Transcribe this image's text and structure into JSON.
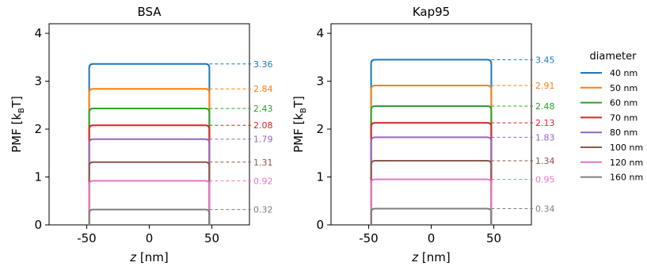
{
  "chart_data": [
    {
      "type": "line",
      "title": "BSA",
      "xlabel": "z [nm]",
      "xlabel_italic": "z",
      "xlabel_rest": " [nm]",
      "ylabel": "PMF [kBT]",
      "ylabel_main": "PMF [k",
      "ylabel_sub": "B",
      "ylabel_end": "T]",
      "xlim": [
        -80,
        80
      ],
      "ylim": [
        0,
        4.2
      ],
      "xticks": [
        -50,
        0,
        50
      ],
      "xtick_labels": [
        "-50",
        "0",
        "50"
      ],
      "yticks": [
        0,
        1,
        2,
        3,
        4
      ],
      "ytick_labels": [
        "0",
        "1",
        "2",
        "3",
        "4"
      ],
      "plateau_range": [
        -48,
        48
      ],
      "series": [
        {
          "name": "40 nm",
          "value": 3.36,
          "label": "3.36",
          "color": "#1f77b4"
        },
        {
          "name": "50 nm",
          "value": 2.84,
          "label": "2.84",
          "color": "#ff7f0e"
        },
        {
          "name": "60 nm",
          "value": 2.43,
          "label": "2.43",
          "color": "#2ca02c"
        },
        {
          "name": "70 nm",
          "value": 2.08,
          "label": "2.08",
          "color": "#d62728"
        },
        {
          "name": "80 nm",
          "value": 1.79,
          "label": "1.79",
          "color": "#9467bd"
        },
        {
          "name": "100 nm",
          "value": 1.31,
          "label": "1.31",
          "color": "#8c564b"
        },
        {
          "name": "120 nm",
          "value": 0.92,
          "label": "0.92",
          "color": "#e377c2"
        },
        {
          "name": "160 nm",
          "value": 0.32,
          "label": "0.32",
          "color": "#7f7f7f"
        }
      ]
    },
    {
      "type": "line",
      "title": "Kap95",
      "xlabel": "z [nm]",
      "xlabel_italic": "z",
      "xlabel_rest": " [nm]",
      "ylabel": "PMF [kBT]",
      "ylabel_main": "PMF [k",
      "ylabel_sub": "B",
      "ylabel_end": "T]",
      "xlim": [
        -80,
        80
      ],
      "ylim": [
        0,
        4.2
      ],
      "xticks": [
        -50,
        0,
        50
      ],
      "xtick_labels": [
        "-50",
        "0",
        "50"
      ],
      "yticks": [
        0,
        1,
        2,
        3,
        4
      ],
      "ytick_labels": [
        "0",
        "1",
        "2",
        "3",
        "4"
      ],
      "plateau_range": [
        -48,
        48
      ],
      "series": [
        {
          "name": "40 nm",
          "value": 3.45,
          "label": "3.45",
          "color": "#1f77b4"
        },
        {
          "name": "50 nm",
          "value": 2.91,
          "label": "2.91",
          "color": "#ff7f0e"
        },
        {
          "name": "60 nm",
          "value": 2.48,
          "label": "2.48",
          "color": "#2ca02c"
        },
        {
          "name": "70 nm",
          "value": 2.13,
          "label": "2.13",
          "color": "#d62728"
        },
        {
          "name": "80 nm",
          "value": 1.83,
          "label": "1.83",
          "color": "#9467bd"
        },
        {
          "name": "100 nm",
          "value": 1.34,
          "label": "1.34",
          "color": "#8c564b"
        },
        {
          "name": "120 nm",
          "value": 0.95,
          "label": "0.95",
          "color": "#e377c2"
        },
        {
          "name": "160 nm",
          "value": 0.34,
          "label": "0.34",
          "color": "#7f7f7f"
        }
      ]
    }
  ],
  "legend": {
    "title": "diameter",
    "placement": "right",
    "entries": [
      {
        "label": "40 nm",
        "color": "#1f77b4"
      },
      {
        "label": "50 nm",
        "color": "#ff7f0e"
      },
      {
        "label": "60 nm",
        "color": "#2ca02c"
      },
      {
        "label": "70 nm",
        "color": "#d62728"
      },
      {
        "label": "80 nm",
        "color": "#9467bd"
      },
      {
        "label": "100 nm",
        "color": "#8c564b"
      },
      {
        "label": "120 nm",
        "color": "#e377c2"
      },
      {
        "label": "160 nm",
        "color": "#7f7f7f"
      }
    ]
  }
}
